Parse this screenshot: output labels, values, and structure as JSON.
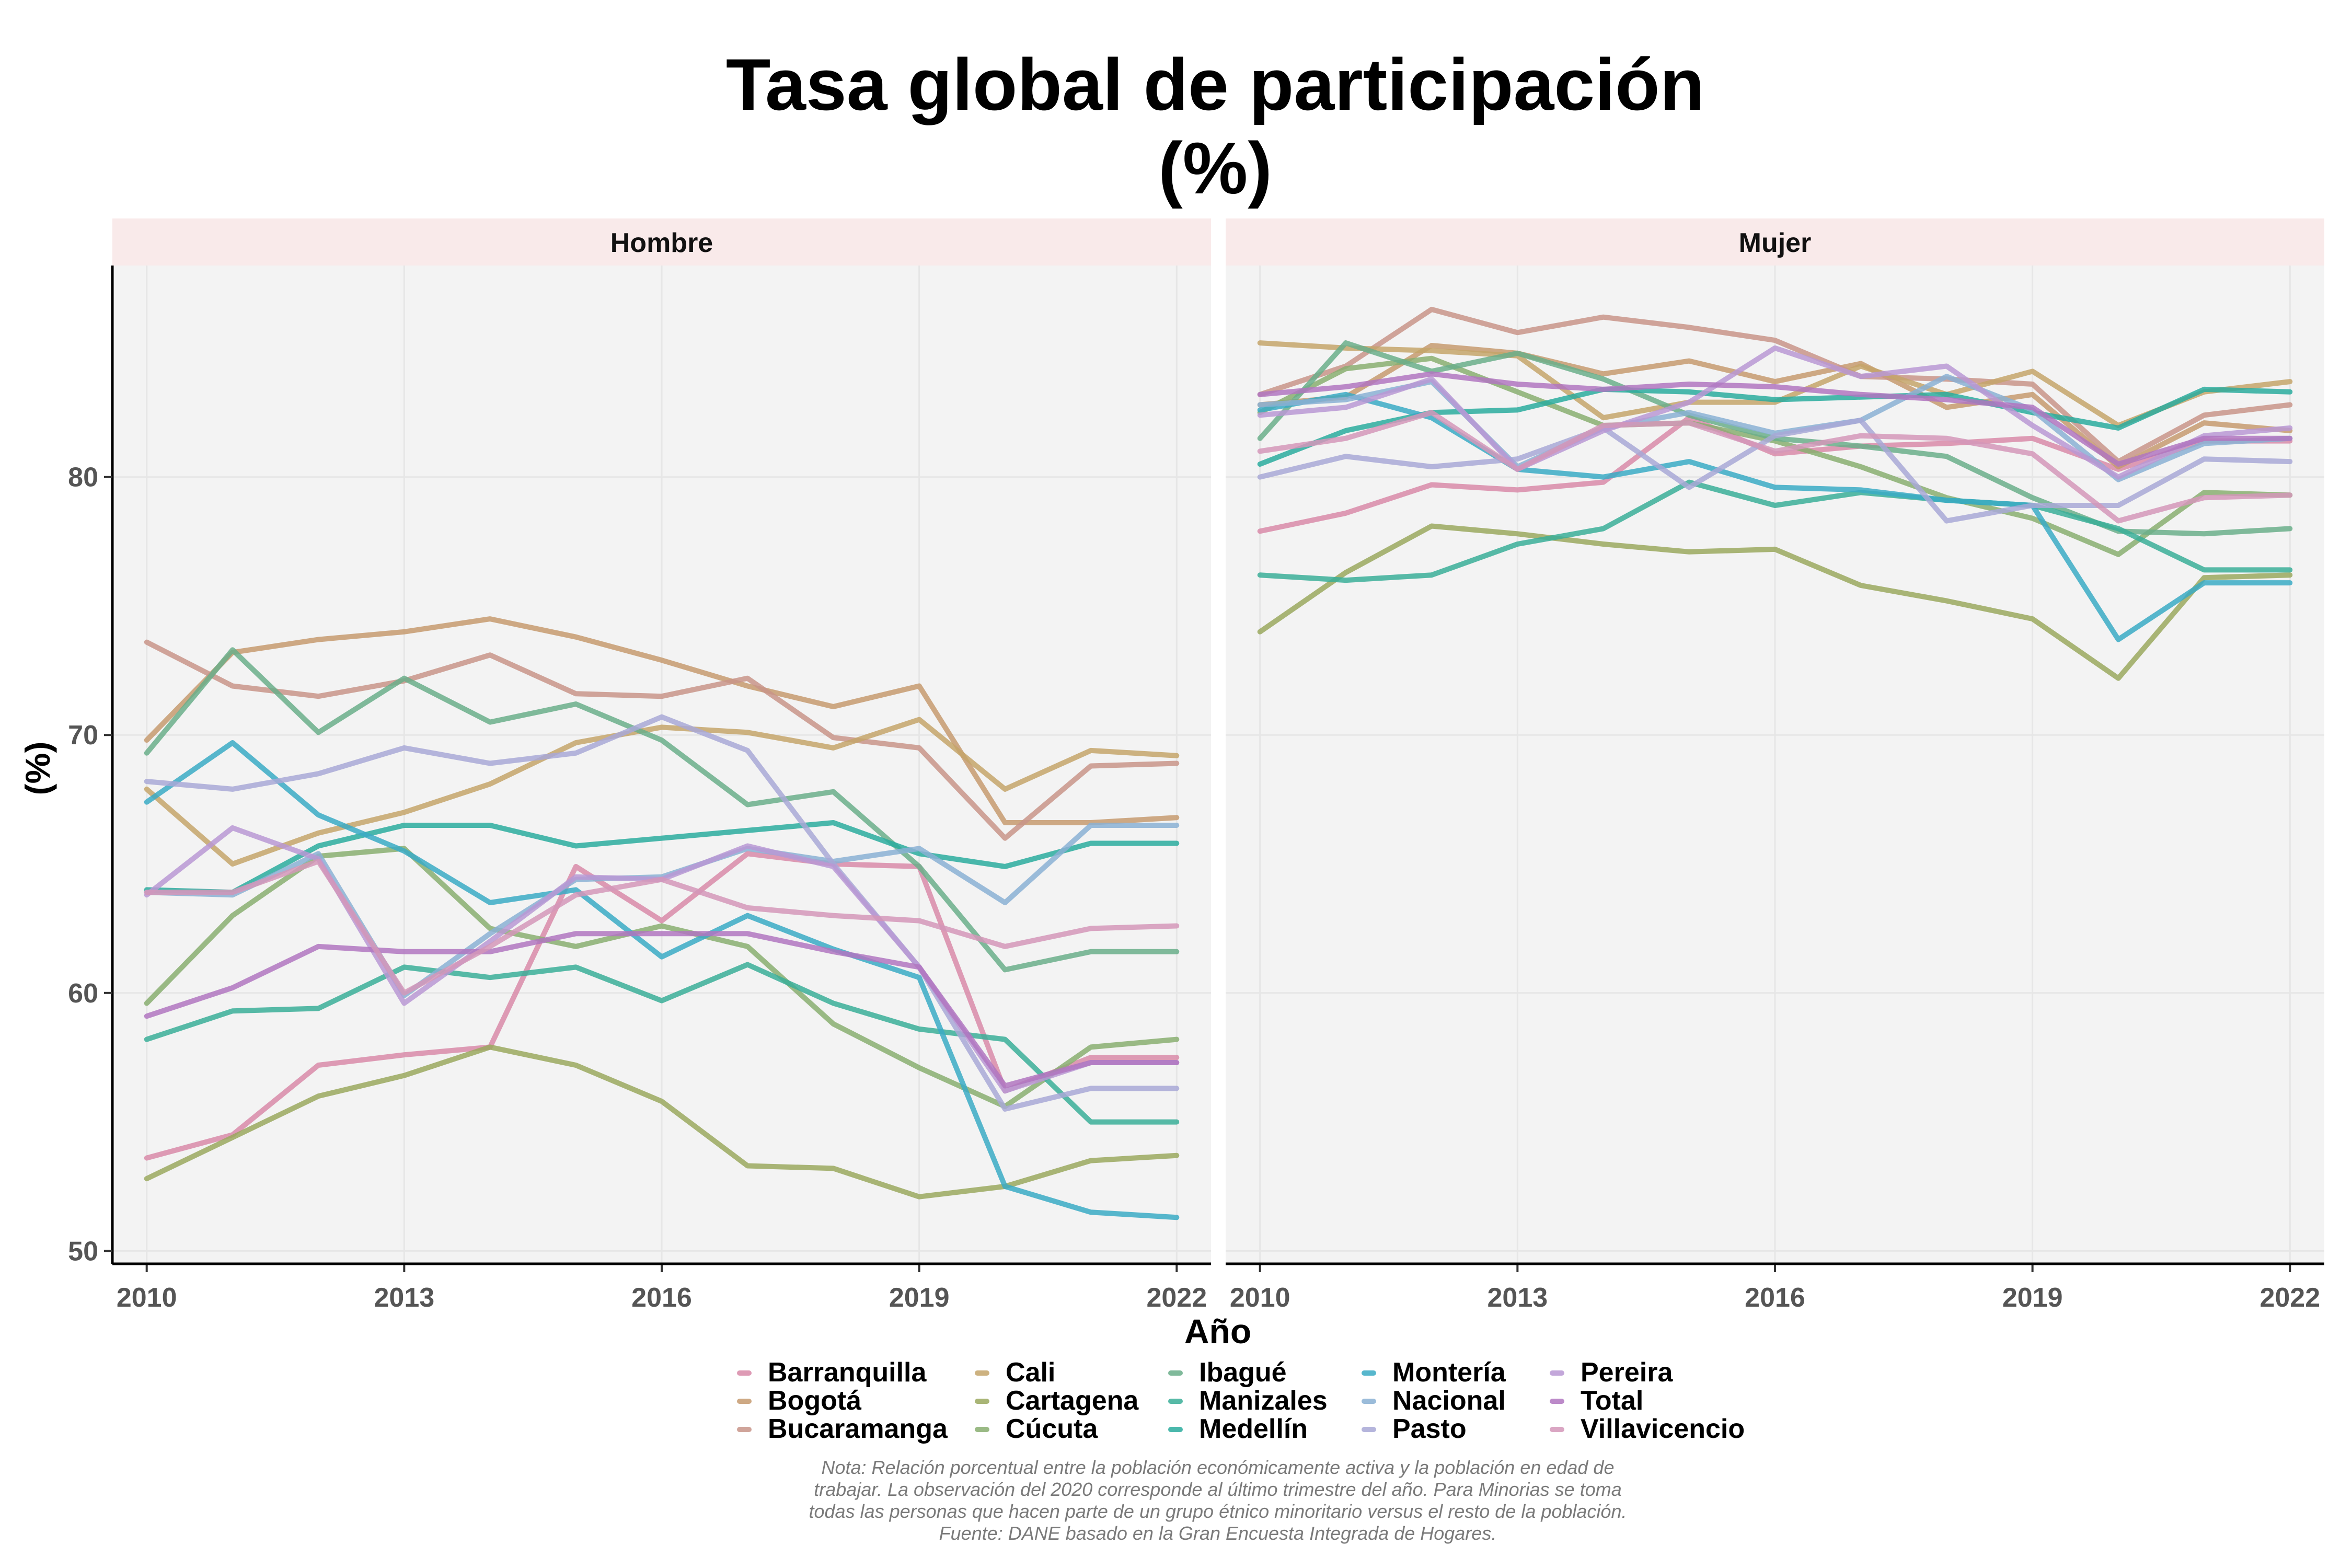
{
  "chart_data": {
    "type": "line",
    "title_line1": "Tasa global de participación",
    "title_line2": "(%)",
    "xlabel": "Año",
    "ylabel": "(%)",
    "x": [
      2010,
      2011,
      2012,
      2013,
      2014,
      2015,
      2016,
      2017,
      2018,
      2019,
      2020,
      2021,
      2022
    ],
    "x_ticks": [
      2010,
      2013,
      2016,
      2019,
      2022
    ],
    "x_tick_labels": [
      "2010",
      "2013",
      "2016",
      "2019",
      "2022"
    ],
    "y_ticks": [
      50,
      60,
      70,
      80
    ],
    "y_tick_labels": [
      "50",
      "60",
      "70",
      "80"
    ],
    "xlim": [
      2009.6,
      2022.4
    ],
    "ylim": [
      49.5,
      88.2
    ],
    "colors": {
      "Barranquilla": "#d88aa8",
      "Bogotá": "#c69a6e",
      "Bucaramanga": "#c89488",
      "Cali": "#c4a46a",
      "Cartagena": "#9aa85e",
      "Cúcuta": "#88ae70",
      "Ibagué": "#6aae8a",
      "Manizales": "#3aae98",
      "Medellín": "#2aac9e",
      "Montería": "#3aaac4",
      "Nacional": "#8ab0d4",
      "Pasto": "#a8a8d6",
      "Pereira": "#b898d4",
      "Total": "#b076c0",
      "Villavicencio": "#d496b8"
    },
    "legend": [
      [
        "Barranquilla",
        "Bogotá",
        "Bucaramanga"
      ],
      [
        "Cali",
        "Cartagena",
        "Cúcuta"
      ],
      [
        "Ibagué",
        "Manizales",
        "Medellín"
      ],
      [
        "Montería",
        "Nacional",
        "Pasto"
      ],
      [
        "Pereira",
        "Total",
        "Villavicencio"
      ]
    ],
    "panels": [
      {
        "name": "Hombre",
        "series": [
          {
            "name": "Barranquilla",
            "values": [
              53.6,
              54.5,
              57.2,
              57.6,
              57.9,
              64.9,
              62.8,
              65.4,
              65.0,
              64.9,
              56.2,
              57.5,
              57.5
            ]
          },
          {
            "name": "Bogotá",
            "values": [
              69.8,
              73.2,
              73.7,
              74.0,
              74.5,
              73.8,
              72.9,
              71.9,
              71.1,
              71.9,
              66.6,
              66.6,
              66.8
            ]
          },
          {
            "name": "Bucaramanga",
            "values": [
              73.6,
              71.9,
              71.5,
              72.1,
              73.1,
              71.6,
              71.5,
              72.2,
              69.9,
              69.5,
              66.0,
              68.8,
              68.9
            ]
          },
          {
            "name": "Cali",
            "values": [
              67.9,
              65.0,
              66.2,
              67.0,
              68.1,
              69.7,
              70.3,
              70.1,
              69.5,
              70.6,
              67.9,
              69.4,
              69.2
            ]
          },
          {
            "name": "Cartagena",
            "values": [
              52.8,
              54.4,
              56.0,
              56.8,
              57.9,
              57.2,
              55.8,
              53.3,
              53.2,
              52.1,
              52.5,
              53.5,
              53.7
            ]
          },
          {
            "name": "Cúcuta",
            "values": [
              59.6,
              63.0,
              65.3,
              65.6,
              62.5,
              61.8,
              62.6,
              61.8,
              58.8,
              57.1,
              55.6,
              57.9,
              58.2
            ]
          },
          {
            "name": "Ibagué",
            "values": [
              69.3,
              73.3,
              70.1,
              72.2,
              70.5,
              71.2,
              69.8,
              67.3,
              67.8,
              64.9,
              60.9,
              61.6,
              61.6
            ]
          },
          {
            "name": "Manizales",
            "values": [
              58.2,
              59.3,
              59.4,
              61.0,
              60.6,
              61.0,
              59.7,
              61.1,
              59.6,
              58.6,
              58.2,
              55.0,
              55.0
            ]
          },
          {
            "name": "Medellín",
            "values": [
              64.0,
              63.9,
              65.7,
              66.5,
              66.5,
              65.7,
              66.0,
              66.3,
              66.6,
              65.4,
              64.9,
              65.8,
              65.8
            ]
          },
          {
            "name": "Montería",
            "values": [
              67.4,
              69.7,
              66.9,
              65.5,
              63.5,
              64.0,
              61.4,
              63.0,
              61.7,
              60.6,
              52.5,
              51.5,
              51.3
            ]
          },
          {
            "name": "Nacional",
            "values": [
              63.9,
              63.8,
              65.4,
              59.9,
              62.3,
              64.4,
              64.5,
              65.6,
              65.1,
              65.6,
              63.5,
              66.5,
              66.5
            ]
          },
          {
            "name": "Pasto",
            "values": [
              68.2,
              67.9,
              68.5,
              69.5,
              68.9,
              69.3,
              70.7,
              69.4,
              65.0,
              61.0,
              55.5,
              56.3,
              56.3
            ]
          },
          {
            "name": "Pereira",
            "values": [
              63.8,
              66.4,
              65.2,
              59.6,
              62.0,
              64.5,
              64.4,
              65.7,
              64.9,
              61.0,
              56.2,
              57.3,
              57.3
            ]
          },
          {
            "name": "Total",
            "values": [
              59.1,
              60.2,
              61.8,
              61.6,
              61.6,
              62.3,
              62.3,
              62.3,
              61.6,
              61.0,
              56.4,
              57.3,
              57.3
            ]
          },
          {
            "name": "Villavicencio",
            "values": [
              63.9,
              63.9,
              65.1,
              60.0,
              61.8,
              63.8,
              64.4,
              63.3,
              63.0,
              62.8,
              61.8,
              62.5,
              62.6
            ]
          }
        ]
      },
      {
        "name": "Mujer",
        "series": [
          {
            "name": "Barranquilla",
            "values": [
              77.9,
              78.6,
              79.7,
              79.5,
              79.8,
              82.3,
              80.9,
              81.2,
              81.3,
              81.5,
              80.3,
              81.4,
              81.4
            ]
          },
          {
            "name": "Bogotá",
            "values": [
              82.8,
              83.1,
              85.1,
              84.8,
              84.0,
              84.5,
              83.7,
              84.4,
              82.7,
              83.2,
              80.4,
              82.1,
              81.8
            ]
          },
          {
            "name": "Bucaramanga",
            "values": [
              83.2,
              84.3,
              86.5,
              85.6,
              86.2,
              85.8,
              85.3,
              83.9,
              83.8,
              83.6,
              80.6,
              82.4,
              82.8
            ]
          },
          {
            "name": "Cali",
            "values": [
              85.2,
              85.0,
              84.9,
              84.7,
              82.3,
              82.9,
              82.9,
              84.3,
              83.2,
              84.1,
              82.0,
              83.3,
              83.7
            ]
          },
          {
            "name": "Cartagena",
            "values": [
              74.0,
              76.3,
              78.1,
              77.8,
              77.4,
              77.1,
              77.2,
              75.8,
              75.2,
              74.5,
              72.2,
              76.1,
              76.2
            ]
          },
          {
            "name": "Cúcuta",
            "values": [
              82.5,
              84.2,
              84.6,
              83.3,
              82.0,
              82.1,
              81.4,
              80.4,
              79.2,
              78.4,
              77.0,
              79.4,
              79.3
            ]
          },
          {
            "name": "Ibagué",
            "values": [
              81.5,
              85.2,
              84.1,
              84.8,
              83.8,
              82.4,
              81.5,
              81.2,
              80.8,
              79.2,
              77.9,
              77.8,
              78.0
            ]
          },
          {
            "name": "Manizales",
            "values": [
              76.2,
              76.0,
              76.2,
              77.4,
              78.0,
              79.8,
              78.9,
              79.4,
              79.1,
              78.9,
              78.0,
              76.4,
              76.4
            ]
          },
          {
            "name": "Medellín",
            "values": [
              80.5,
              81.8,
              82.5,
              82.6,
              83.4,
              83.3,
              83.0,
              83.1,
              83.2,
              82.5,
              81.9,
              83.4,
              83.3
            ]
          },
          {
            "name": "Montería",
            "values": [
              82.6,
              83.2,
              82.3,
              80.3,
              80.0,
              80.6,
              79.6,
              79.5,
              79.1,
              78.9,
              73.7,
              75.9,
              75.9
            ]
          },
          {
            "name": "Nacional",
            "values": [
              82.8,
              83.0,
              83.7,
              80.4,
              81.9,
              82.5,
              81.7,
              82.2,
              83.9,
              82.6,
              79.9,
              81.3,
              81.5
            ]
          },
          {
            "name": "Pasto",
            "values": [
              80.0,
              80.8,
              80.4,
              80.7,
              81.9,
              79.6,
              81.6,
              82.2,
              78.3,
              78.9,
              78.9,
              80.7,
              80.6
            ]
          },
          {
            "name": "Pereira",
            "values": [
              82.4,
              82.7,
              83.8,
              80.3,
              81.8,
              82.9,
              85.0,
              83.9,
              84.3,
              82.0,
              80.0,
              81.6,
              81.9
            ]
          },
          {
            "name": "Total",
            "values": [
              83.2,
              83.5,
              84.0,
              83.6,
              83.4,
              83.6,
              83.5,
              83.2,
              83.0,
              82.7,
              80.5,
              81.5,
              81.5
            ]
          },
          {
            "name": "Villavicencio",
            "values": [
              81.0,
              81.5,
              82.5,
              80.3,
              82.0,
              82.1,
              81.0,
              81.6,
              81.5,
              80.9,
              78.3,
              79.2,
              79.3
            ]
          }
        ]
      }
    ],
    "note_lines": [
      "Nota: Relación porcentual entre la población económicamente activa y la población en edad de",
      "trabajar. La observación del 2020 corresponde al último trimestre del año. Para Minorias se toma",
      "todas las personas que hacen parte de un grupo étnico minoritario versus el resto de la población.",
      "Fuente: DANE basado en la Gran Encuesta Integrada de Hogares."
    ]
  }
}
